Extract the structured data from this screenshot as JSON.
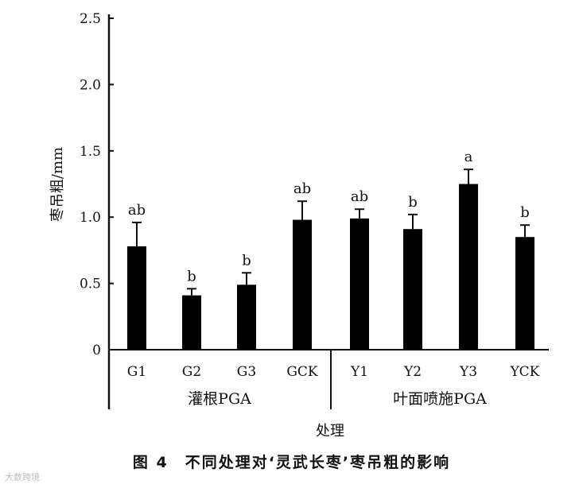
{
  "chart_data": {
    "type": "bar",
    "ylabel": "枣吊粗/mm",
    "xlabel": "处理",
    "ylim": [
      0,
      2.5
    ],
    "yticks": [
      "0",
      "0.5",
      "1.0",
      "1.5",
      "2.0",
      "2.5"
    ],
    "categories": [
      "G1",
      "G2",
      "G3",
      "GCK",
      "Y1",
      "Y2",
      "Y3",
      "YCK"
    ],
    "values": [
      0.78,
      0.41,
      0.49,
      0.98,
      0.99,
      0.91,
      1.25,
      0.85
    ],
    "errors": [
      0.18,
      0.05,
      0.09,
      0.14,
      0.07,
      0.11,
      0.11,
      0.09
    ],
    "significance": [
      "ab",
      "b",
      "b",
      "ab",
      "ab",
      "b",
      "a",
      "b"
    ],
    "groups": [
      {
        "label": "灌根PGA",
        "categories": [
          "G1",
          "G2",
          "G3",
          "GCK"
        ]
      },
      {
        "label": "叶面喷施PGA",
        "categories": [
          "Y1",
          "Y2",
          "Y3",
          "YCK"
        ]
      }
    ],
    "bar_color": "#000000"
  },
  "caption": "图 4　不同处理对‘灵武长枣’枣吊粗的影响",
  "watermark": "大数跨境"
}
